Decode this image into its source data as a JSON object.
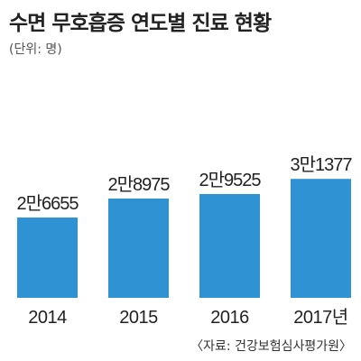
{
  "chart_data": {
    "type": "bar",
    "title": "수면 무호흡증 연도별 진료 현황",
    "subtitle": "(단위: 명)",
    "source": "〈자료: 건강보험심사평가원〉",
    "categories": [
      "2014",
      "2015",
      "2016",
      "2017년"
    ],
    "values": [
      26655,
      28975,
      29525,
      31377
    ],
    "value_labels": [
      "2만6655",
      "2만8975",
      "2만9525",
      "3만1377"
    ],
    "color": "#2f93d3",
    "grid": false,
    "legend": "none"
  }
}
